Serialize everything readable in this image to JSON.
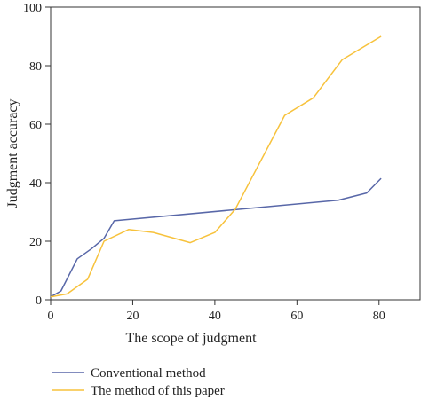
{
  "chart_data": {
    "type": "line",
    "xlabel": "The scope of judgment",
    "ylabel": "Judgment accuracy",
    "xlim": [
      0,
      90
    ],
    "ylim": [
      0,
      100
    ],
    "xticks": [
      0,
      20,
      40,
      60,
      80
    ],
    "yticks": [
      0,
      20,
      40,
      60,
      80,
      100
    ],
    "xtick_labels": [
      "0",
      "20",
      "40",
      "60",
      "80"
    ],
    "ytick_labels": [
      "0",
      "20",
      "40",
      "60",
      "80",
      "100"
    ],
    "grid": false,
    "legend_position": "bottom",
    "series": [
      {
        "name": "Conventional method",
        "color": "#5867a8",
        "x": [
          0,
          2.5,
          6.5,
          10,
          13,
          15.5,
          70,
          77,
          80.5
        ],
        "y": [
          1,
          3,
          14,
          17.5,
          21,
          27,
          34,
          36.5,
          41.5
        ]
      },
      {
        "name": "The method of this paper",
        "color": "#f7c23c",
        "x": [
          0,
          4,
          9,
          13,
          19,
          25,
          34,
          40,
          45,
          57,
          64,
          71,
          80.5
        ],
        "y": [
          1,
          2,
          7,
          20,
          24,
          23,
          19.5,
          23,
          31,
          63,
          69,
          82,
          90
        ]
      }
    ]
  }
}
